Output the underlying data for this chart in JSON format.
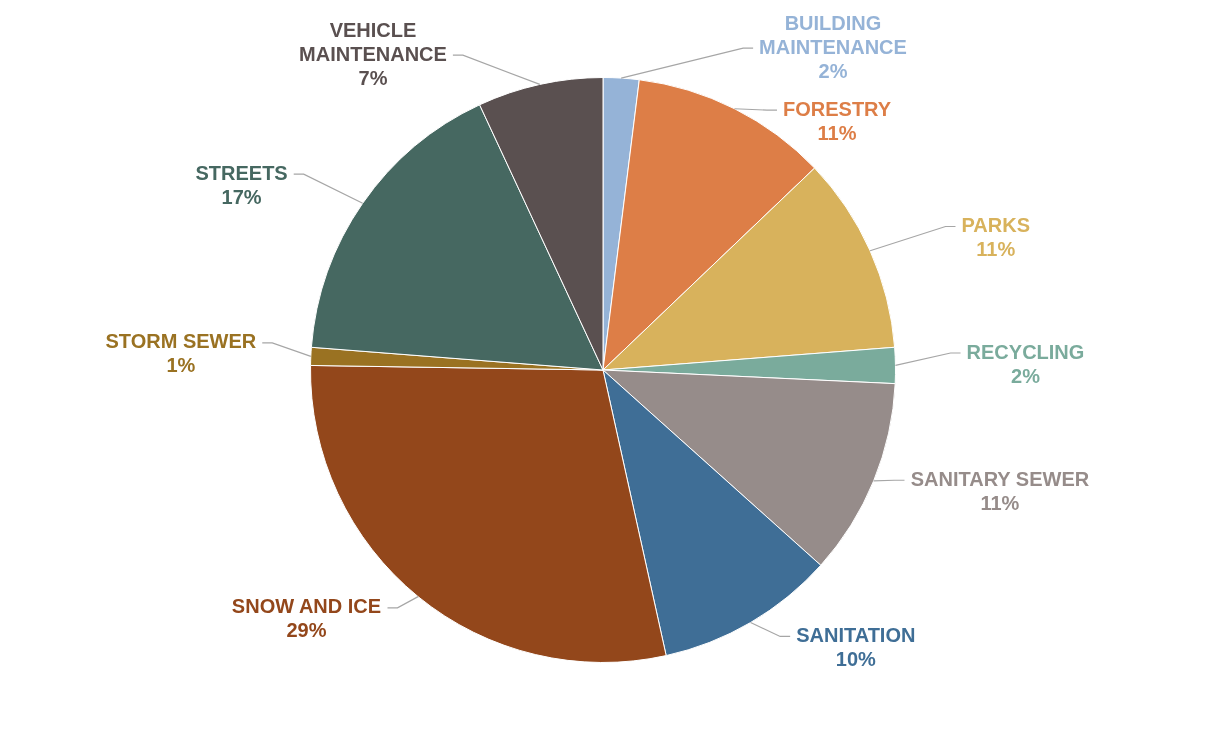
{
  "chart_data": {
    "type": "pie",
    "categories": [
      "BUILDING MAINTENANCE",
      "FORESTRY",
      "PARKS",
      "RECYCLING",
      "SANITARY SEWER",
      "SANITATION",
      "SNOW AND ICE",
      "STORM SEWER",
      "STREETS",
      "VEHICLE MAINTENANCE"
    ],
    "values": [
      2,
      11,
      11,
      2,
      11,
      10,
      29,
      1,
      17,
      7
    ],
    "value_labels": [
      "2%",
      "11%",
      "11%",
      "2%",
      "11%",
      "10%",
      "29%",
      "1%",
      "17%",
      "7%"
    ],
    "colors": [
      "#95b3d7",
      "#dd7e47",
      "#d8b25c",
      "#7aab9c",
      "#968c8a",
      "#3f6e96",
      "#93471b",
      "#9a7222",
      "#466861",
      "#5a5050"
    ],
    "legend": false
  }
}
